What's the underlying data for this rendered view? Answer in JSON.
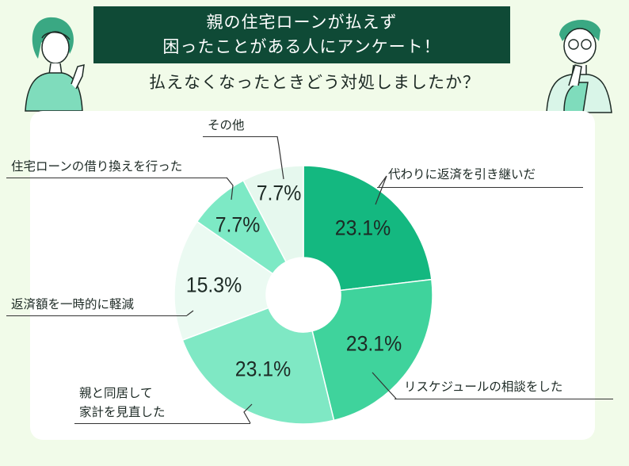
{
  "header": {
    "title_line1": "親の住宅ローンが払えず",
    "title_line2": "困ったことがある人にアンケート！",
    "question": "払えなくなったときどう対処しましたか？"
  },
  "chart_data": {
    "type": "pie",
    "title": "払えなくなったときどう対処しましたか？",
    "donut": true,
    "slices": [
      {
        "label": "代わりに返済を引き継いだ",
        "value": 23.1,
        "display": "23.1%",
        "color": "#14b880"
      },
      {
        "label": "リスケジュールの相談をした",
        "value": 23.1,
        "display": "23.1%",
        "color": "#3fd39c"
      },
      {
        "label": "親と同居して家計を見直した",
        "label_lines": [
          "親と同居して",
          "家計を見直した"
        ],
        "value": 23.1,
        "display": "23.1%",
        "color": "#7fe8c4"
      },
      {
        "label": "返済額を一時的に軽減",
        "value": 15.3,
        "display": "15.3%",
        "color": "#ebfaf2"
      },
      {
        "label": "住宅ローンの借り換えを行った",
        "value": 7.7,
        "display": "7.7%",
        "color": "#7de9c5"
      },
      {
        "label": "その他",
        "value": 7.7,
        "display": "7.7%",
        "color": "#e6f8ee"
      }
    ]
  }
}
